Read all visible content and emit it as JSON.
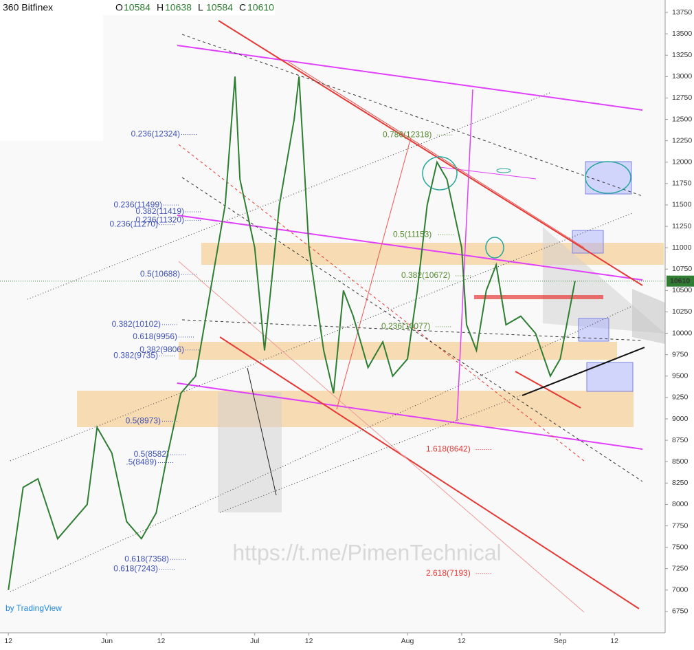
{
  "chart_data": {
    "type": "line",
    "exchange": "360 Bitfinex",
    "ohlc": [
      {
        "label": "O",
        "value": "10584"
      },
      {
        "label": "H",
        "value": "10638"
      },
      {
        "label": "L",
        "value": "10584"
      },
      {
        "label": "C",
        "value": "10610"
      }
    ],
    "last_price": 10610,
    "watermark": "https://t.me/PimenTechnical",
    "brand": "by TradingView",
    "x": [
      0,
      3,
      6,
      10,
      13,
      16,
      18,
      21,
      24,
      27,
      30,
      32,
      35,
      38,
      41,
      44,
      46,
      47,
      50,
      52,
      55,
      58,
      59,
      61,
      64,
      66,
      68,
      70,
      73,
      76,
      78,
      81,
      83,
      85,
      87,
      89,
      92,
      93,
      95,
      97,
      99,
      101,
      104,
      107,
      110,
      112,
      115
    ],
    "series": [
      {
        "name": "Close",
        "color": "#2e7d32",
        "values": [
          7000,
          8200,
          8300,
          7600,
          7800,
          8000,
          8900,
          8600,
          7800,
          7600,
          7900,
          8500,
          9300,
          9500,
          10500,
          11500,
          13000,
          11800,
          11000,
          9800,
          11500,
          12500,
          13000,
          11000,
          9800,
          9300,
          10500,
          10200,
          9600,
          9900,
          9500,
          9700,
          10500,
          11500,
          12000,
          11800,
          11000,
          10100,
          9800,
          10500,
          10800,
          10100,
          10200,
          10000,
          9500,
          9700,
          10610
        ]
      }
    ],
    "xlim": [
      -1.7,
      133.3
    ],
    "xticks": [
      {
        "value": 0,
        "label": "12"
      },
      {
        "value": 20,
        "label": "Jun"
      },
      {
        "value": 31,
        "label": "12"
      },
      {
        "value": 50,
        "label": "Jul"
      },
      {
        "value": 61,
        "label": "12"
      },
      {
        "value": 81,
        "label": "Aug"
      },
      {
        "value": 92,
        "label": "12"
      },
      {
        "value": 112,
        "label": "Sep"
      },
      {
        "value": 123,
        "label": "12"
      }
    ],
    "ylim": [
      6500,
      13895
    ],
    "yticks": [
      6750,
      7000,
      7250,
      7500,
      7750,
      8000,
      8250,
      8500,
      8750,
      9000,
      9250,
      9500,
      9750,
      10000,
      10250,
      10500,
      10750,
      11000,
      11250,
      11500,
      11750,
      12000,
      12250,
      12500,
      12750,
      13000,
      13250,
      13500,
      13750
    ],
    "fib_groups": [
      {
        "color": "#3f51b5",
        "levels": [
          {
            "label": "0.236(12324)",
            "level": 12324
          },
          {
            "label": "0.236(11499)",
            "level": 11499
          },
          {
            "label": "0.382(11419)",
            "level": 11419
          },
          {
            "label": "0.236(11320)",
            "level": 11320
          },
          {
            "label": "0.236(11270)",
            "level": 11270
          },
          {
            "label": "0.5(10688)",
            "level": 10688
          },
          {
            "label": "0.382(10102)",
            "level": 10102
          },
          {
            "label": "0.618(9956)",
            "level": 9956
          },
          {
            "label": "0.382(9806)",
            "level": 9806
          },
          {
            "label": "0.382(9735)",
            "level": 9735
          },
          {
            "label": "0.5(8973)",
            "level": 8973
          },
          {
            "label": "0.5(8582)",
            "level": 8582
          },
          {
            "label": ".5(8489)",
            "level": 8489
          },
          {
            "label": "0.618(7358)",
            "level": 7358
          },
          {
            "label": "0.618(7243)",
            "level": 7243
          }
        ]
      },
      {
        "color": "#558b2f",
        "levels": [
          {
            "label": "0.786(12318)",
            "level": 12318
          },
          {
            "label": "0.5(11153)",
            "level": 11153
          },
          {
            "label": "0.382(10672)",
            "level": 10672
          },
          {
            "label": "0.236(10077)",
            "level": 10077
          }
        ]
      },
      {
        "color": "#e53935",
        "levels": [
          {
            "label": "1.618(8642)",
            "level": 8642
          },
          {
            "label": "2.618(7193)",
            "level": 7193
          }
        ]
      }
    ]
  }
}
